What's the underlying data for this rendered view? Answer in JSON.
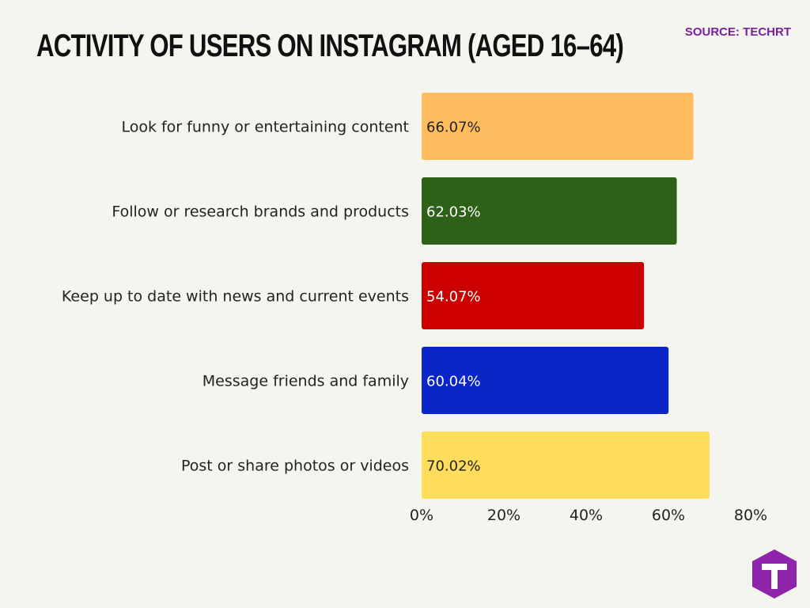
{
  "header": {
    "title": "ACTIVITY OF USERS ON INSTAGRAM (AGED 16–64)",
    "source": "SOURCE: TECHRT"
  },
  "colors": {
    "source_text": "#7b1fa2",
    "logo_fill": "#8e24aa"
  },
  "logo": {
    "icon": "techrt-logo-icon",
    "letter": "T"
  },
  "chart_data": {
    "type": "bar",
    "orientation": "horizontal",
    "title": "ACTIVITY OF USERS ON INSTAGRAM (AGED 16–64)",
    "categories": [
      "Look for funny or entertaining content",
      "Follow or research brands and products",
      "Keep up to date with news and current events",
      "Message friends and family",
      "Post or share photos or videos"
    ],
    "values": [
      66.07,
      62.03,
      54.07,
      60.04,
      70.02
    ],
    "value_labels": [
      "66.07%",
      "62.03%",
      "54.07%",
      "60.04%",
      "70.02%"
    ],
    "bar_colors": [
      "#ffbc5e",
      "#2e6118",
      "#cc0000",
      "#0a25c8",
      "#ffdd5c"
    ],
    "value_label_colors": [
      "#222222",
      "#ffffff",
      "#ffffff",
      "#ffffff",
      "#222222"
    ],
    "xlim": [
      0,
      80
    ],
    "xticks": [
      0,
      20,
      40,
      60,
      80
    ],
    "xtick_labels": [
      "0%",
      "20%",
      "40%",
      "60%",
      "80%"
    ],
    "grid": false,
    "legend": "none"
  }
}
